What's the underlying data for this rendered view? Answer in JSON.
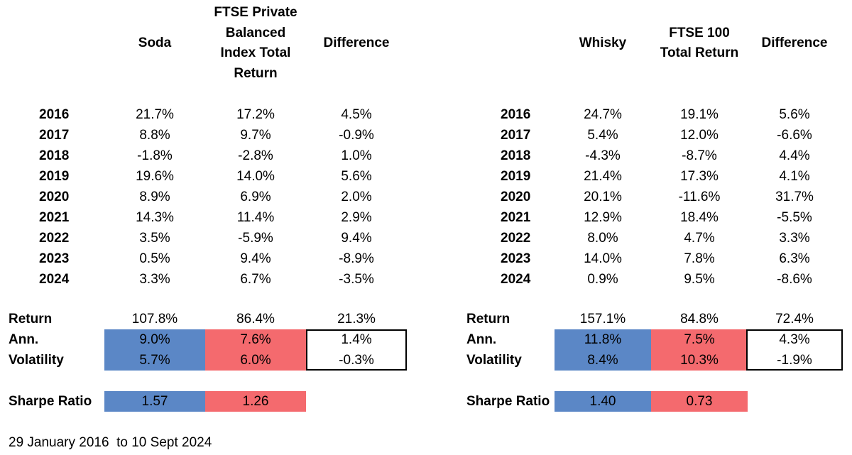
{
  "colors": {
    "strategy_fill": "#5B87C6",
    "benchmark_fill": "#F46A6E",
    "difference_border": "#000000"
  },
  "tables": [
    {
      "columns": [
        "Soda",
        "FTSE Private Balanced Index Total Return",
        "Difference"
      ],
      "column_lines": [
        [
          "Soda"
        ],
        [
          "FTSE Private",
          "Balanced",
          "Index Total",
          "Return"
        ],
        [
          "Difference"
        ]
      ],
      "years": [
        {
          "year": "2016",
          "values": [
            "21.7%",
            "17.2%",
            "4.5%"
          ]
        },
        {
          "year": "2017",
          "values": [
            "8.8%",
            "9.7%",
            "-0.9%"
          ]
        },
        {
          "year": "2018",
          "values": [
            "-1.8%",
            "-2.8%",
            "1.0%"
          ]
        },
        {
          "year": "2019",
          "values": [
            "19.6%",
            "14.0%",
            "5.6%"
          ]
        },
        {
          "year": "2020",
          "values": [
            "8.9%",
            "6.9%",
            "2.0%"
          ]
        },
        {
          "year": "2021",
          "values": [
            "14.3%",
            "11.4%",
            "2.9%"
          ]
        },
        {
          "year": "2022",
          "values": [
            "3.5%",
            "-5.9%",
            "9.4%"
          ]
        },
        {
          "year": "2023",
          "values": [
            "0.5%",
            "9.4%",
            "-8.9%"
          ]
        },
        {
          "year": "2024",
          "values": [
            "3.3%",
            "6.7%",
            "-3.5%"
          ]
        }
      ],
      "summary": [
        {
          "label": "Return",
          "values": [
            "107.8%",
            "86.4%",
            "21.3%"
          ]
        },
        {
          "label": "Ann.",
          "values": [
            "9.0%",
            "7.6%",
            "1.4%"
          ]
        },
        {
          "label": "Volatility",
          "values": [
            "5.7%",
            "6.0%",
            "-0.3%"
          ]
        }
      ],
      "sharpe": {
        "label": "Sharpe Ratio",
        "values": [
          "1.57",
          "1.26"
        ]
      }
    },
    {
      "columns": [
        "Whisky",
        "FTSE 100 Total Return",
        "Difference"
      ],
      "column_lines": [
        [
          "Whisky"
        ],
        [
          "FTSE 100",
          "Total Return"
        ],
        [
          "Difference"
        ]
      ],
      "years": [
        {
          "year": "2016",
          "values": [
            "24.7%",
            "19.1%",
            "5.6%"
          ]
        },
        {
          "year": "2017",
          "values": [
            "5.4%",
            "12.0%",
            "-6.6%"
          ]
        },
        {
          "year": "2018",
          "values": [
            "-4.3%",
            "-8.7%",
            "4.4%"
          ]
        },
        {
          "year": "2019",
          "values": [
            "21.4%",
            "17.3%",
            "4.1%"
          ]
        },
        {
          "year": "2020",
          "values": [
            "20.1%",
            "-11.6%",
            "31.7%"
          ]
        },
        {
          "year": "2021",
          "values": [
            "12.9%",
            "18.4%",
            "-5.5%"
          ]
        },
        {
          "year": "2022",
          "values": [
            "8.0%",
            "4.7%",
            "3.3%"
          ]
        },
        {
          "year": "2023",
          "values": [
            "14.0%",
            "7.8%",
            "6.3%"
          ]
        },
        {
          "year": "2024",
          "values": [
            "0.9%",
            "9.5%",
            "-8.6%"
          ]
        }
      ],
      "summary": [
        {
          "label": "Return",
          "values": [
            "157.1%",
            "84.8%",
            "72.4%"
          ]
        },
        {
          "label": "Ann.",
          "values": [
            "11.8%",
            "7.5%",
            "4.3%"
          ]
        },
        {
          "label": "Volatility",
          "values": [
            "8.4%",
            "10.3%",
            "-1.9%"
          ]
        }
      ],
      "sharpe": {
        "label": "Sharpe Ratio",
        "values": [
          "1.40",
          "0.73"
        ]
      }
    }
  ],
  "footnote": "29 January 2016  to 10 Sept 2024"
}
